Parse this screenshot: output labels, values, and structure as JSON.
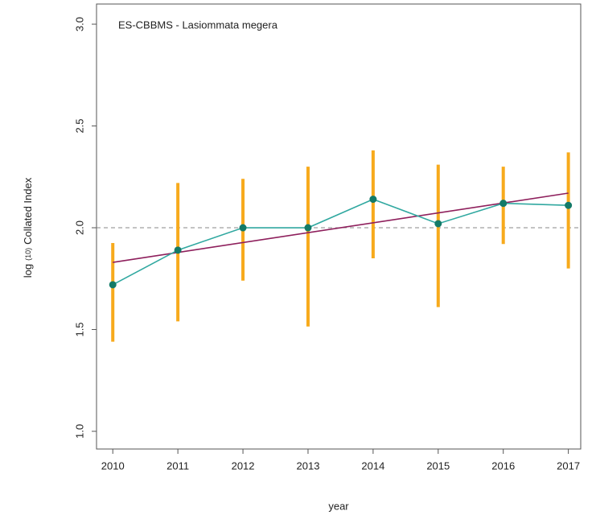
{
  "chart_data": {
    "type": "line",
    "title": "ES-CBBMS - Lasiommata megera",
    "x_label": "year",
    "y_label": {
      "main": "log",
      "sub": "(10)",
      "rest": "Collated Index"
    },
    "x": [
      2010,
      2011,
      2012,
      2013,
      2014,
      2015,
      2016,
      2017
    ],
    "series": [
      {
        "color": "#30a8a0",
        "point_color": "#137a68",
        "bar_color": "#f7aa1c",
        "values": [
          1.72,
          1.89,
          2.0,
          2.0,
          2.14,
          2.02,
          2.12,
          2.11
        ],
        "lower": [
          1.44,
          1.54,
          1.74,
          1.515,
          1.85,
          1.61,
          1.92,
          1.8
        ],
        "upper": [
          1.925,
          2.22,
          2.24,
          2.3,
          2.38,
          2.31,
          2.3,
          2.37
        ]
      }
    ],
    "trend": {
      "x": [
        2010,
        2017
      ],
      "values": [
        1.83,
        2.17
      ],
      "color": "#8e1f5c"
    },
    "hline": {
      "value": 2,
      "color": "#888888"
    },
    "xlim": [
      2009.75,
      2017.19
    ],
    "xticks": [
      2010,
      2011,
      2012,
      2013,
      2014,
      2015,
      2016,
      2017
    ],
    "ylim": [
      0.913,
      3.099
    ],
    "yticks": [
      {
        "value": 1,
        "label": "1.0"
      },
      {
        "value": 1.5,
        "label": "1.5"
      },
      {
        "value": 2,
        "label": "2.0"
      },
      {
        "value": 2.5,
        "label": "2.5"
      },
      {
        "value": 3,
        "label": "3.0"
      }
    ]
  }
}
